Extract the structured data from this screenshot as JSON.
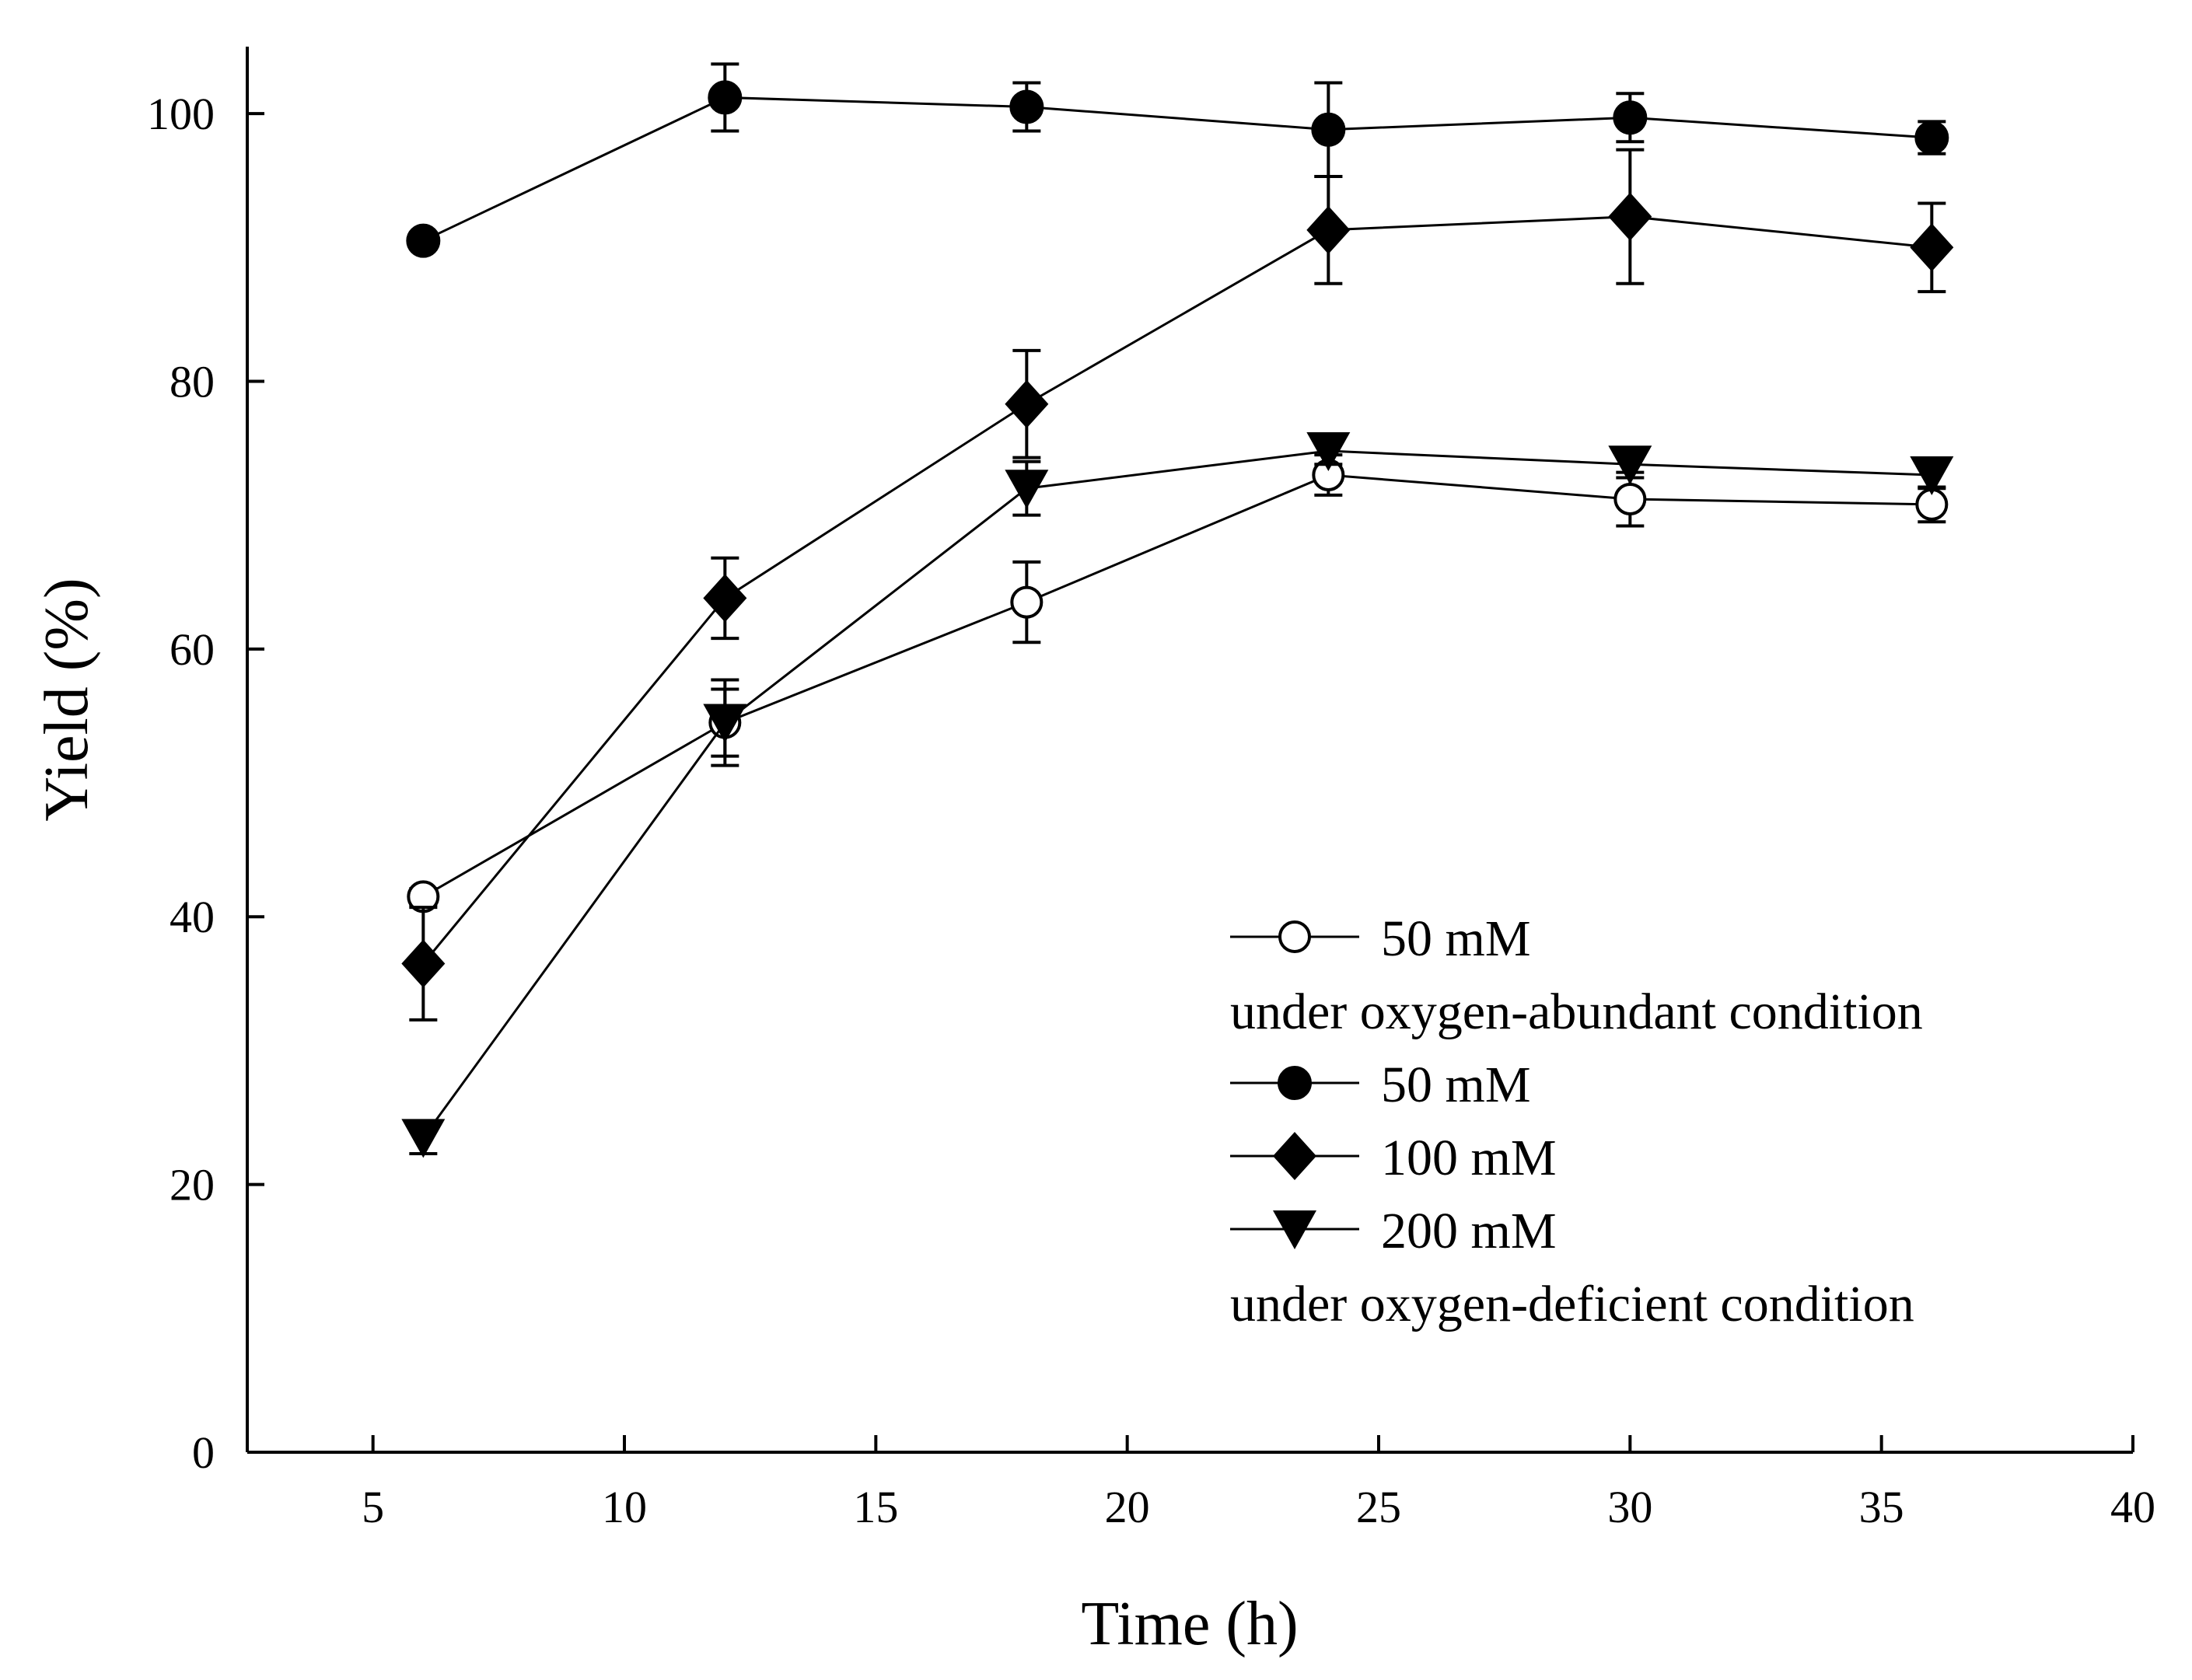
{
  "chart_data": {
    "type": "line",
    "title": "",
    "xlabel": "Time (h)",
    "ylabel": "Yield (%)",
    "xlim": [
      2.5,
      40
    ],
    "ylim": [
      0,
      105
    ],
    "xticks": [
      5,
      10,
      15,
      20,
      25,
      30,
      35,
      40
    ],
    "yticks": [
      0,
      20,
      40,
      60,
      80,
      100
    ],
    "grid": false,
    "legend_position": "bottom-right",
    "x": [
      6,
      12,
      18,
      24,
      30,
      36
    ],
    "series": [
      {
        "id": "open-50",
        "name": "50 mM",
        "marker": "circle-open",
        "values": [
          41.5,
          54.5,
          63.5,
          73.0,
          71.2,
          70.8
        ],
        "errors": [
          0.6,
          2.5,
          3.0,
          1.5,
          2.0,
          1.3
        ]
      },
      {
        "id": "filled-50",
        "name": "50 mM",
        "marker": "circle-filled",
        "values": [
          90.5,
          101.2,
          100.5,
          98.8,
          99.7,
          98.2
        ],
        "errors": [
          0.5,
          2.5,
          1.8,
          3.5,
          1.8,
          1.2
        ]
      },
      {
        "id": "filled-100",
        "name": "100 mM",
        "marker": "diamond-filled",
        "values": [
          36.5,
          63.8,
          78.3,
          91.3,
          92.3,
          90.0
        ],
        "errors": [
          4.2,
          3.0,
          4.0,
          4.0,
          5.0,
          3.3
        ]
      },
      {
        "id": "filled-200",
        "name": "200 mM",
        "marker": "triangle-down-filled",
        "values": [
          23.5,
          54.5,
          72.0,
          74.8,
          73.8,
          73.0
        ],
        "errors": [
          1.2,
          3.2,
          2.0,
          1.0,
          1.0,
          1.0
        ]
      }
    ],
    "legend": {
      "entries": [
        {
          "kind": "series",
          "series_id": "open-50",
          "label": "50 mM"
        },
        {
          "kind": "note",
          "label": "under oxygen-abundant condition"
        },
        {
          "kind": "series",
          "series_id": "filled-50",
          "label": "50 mM"
        },
        {
          "kind": "series",
          "series_id": "filled-100",
          "label": "100 mM"
        },
        {
          "kind": "series",
          "series_id": "filled-200",
          "label": "200 mM"
        },
        {
          "kind": "note",
          "label": "under oxygen-deficient condition"
        }
      ]
    },
    "colors": {
      "line": "#000000",
      "marker": "#000000",
      "open_fill": "#ffffff"
    }
  }
}
